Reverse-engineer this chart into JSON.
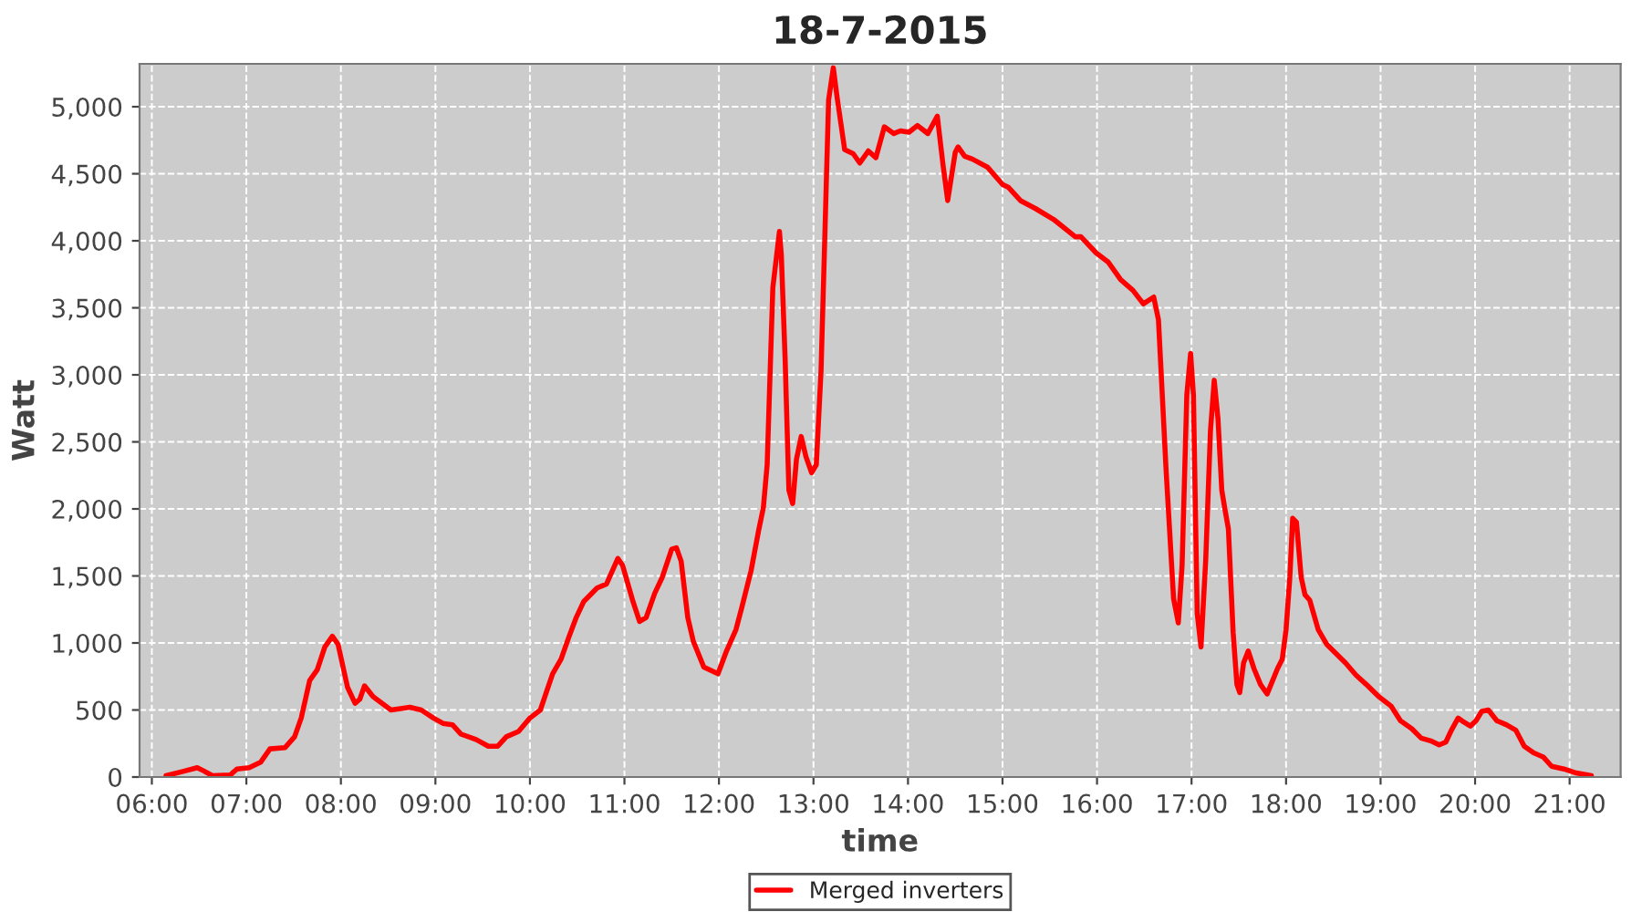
{
  "chart_data": {
    "type": "line",
    "title": "18-7-2015",
    "xlabel": "time",
    "ylabel": "Watt",
    "xlim": [
      5.87,
      21.54
    ],
    "ylim": [
      0,
      5320
    ],
    "xticks": [
      {
        "value": 6,
        "label": "06:00"
      },
      {
        "value": 7,
        "label": "07:00"
      },
      {
        "value": 8,
        "label": "08:00"
      },
      {
        "value": 9,
        "label": "09:00"
      },
      {
        "value": 10,
        "label": "10:00"
      },
      {
        "value": 11,
        "label": "11:00"
      },
      {
        "value": 12,
        "label": "12:00"
      },
      {
        "value": 13,
        "label": "13:00"
      },
      {
        "value": 14,
        "label": "14:00"
      },
      {
        "value": 15,
        "label": "15:00"
      },
      {
        "value": 16,
        "label": "16:00"
      },
      {
        "value": 17,
        "label": "17:00"
      },
      {
        "value": 18,
        "label": "18:00"
      },
      {
        "value": 19,
        "label": "19:00"
      },
      {
        "value": 20,
        "label": "20:00"
      },
      {
        "value": 21,
        "label": "21:00"
      }
    ],
    "yticks": [
      0,
      500,
      {
        "value": 1000,
        "label": "1,000"
      },
      {
        "value": 1500,
        "label": "1,500"
      },
      {
        "value": 2000,
        "label": "2,000"
      },
      {
        "value": 2500,
        "label": "2,500"
      },
      {
        "value": 3000,
        "label": "3,000"
      },
      {
        "value": 3500,
        "label": "3,500"
      },
      {
        "value": 4000,
        "label": "4,000"
      },
      {
        "value": 4500,
        "label": "4,500"
      },
      {
        "value": 5000,
        "label": "5,000"
      }
    ],
    "grid": true,
    "legend": "bottom",
    "line_style": "solid",
    "series": [
      {
        "name": "Merged inverters",
        "color": "#ff0000",
        "x": [
          6.15,
          6.32,
          6.48,
          6.55,
          6.64,
          6.83,
          6.9,
          7.03,
          7.15,
          7.25,
          7.41,
          7.51,
          7.58,
          7.67,
          7.75,
          7.83,
          7.91,
          7.97,
          8.07,
          8.15,
          8.2,
          8.25,
          8.34,
          8.53,
          8.73,
          8.85,
          8.98,
          9.08,
          9.18,
          9.27,
          9.43,
          9.56,
          9.66,
          9.75,
          9.88,
          10.0,
          10.11,
          10.24,
          10.33,
          10.41,
          10.49,
          10.57,
          10.71,
          10.81,
          10.93,
          10.98,
          11.09,
          11.16,
          11.23,
          11.32,
          11.4,
          11.5,
          11.55,
          11.6,
          11.67,
          11.73,
          11.84,
          11.99,
          12.08,
          12.18,
          12.24,
          12.34,
          12.42,
          12.47,
          12.51,
          12.57,
          12.64,
          12.66,
          12.7,
          12.74,
          12.78,
          12.82,
          12.87,
          12.92,
          12.98,
          13.03,
          13.08,
          13.12,
          13.16,
          13.21,
          13.25,
          13.33,
          13.42,
          13.49,
          13.58,
          13.66,
          13.75,
          13.85,
          13.92,
          14.01,
          14.1,
          14.21,
          14.31,
          14.37,
          14.42,
          14.5,
          14.53,
          14.6,
          14.68,
          14.84,
          15.0,
          15.06,
          15.19,
          15.35,
          15.54,
          15.77,
          15.83,
          15.99,
          16.12,
          16.25,
          16.38,
          16.49,
          16.6,
          16.65,
          16.73,
          16.81,
          16.86,
          16.9,
          16.95,
          16.99,
          17.02,
          17.06,
          17.1,
          17.15,
          17.2,
          17.24,
          17.28,
          17.32,
          17.35,
          17.39,
          17.44,
          17.48,
          17.51,
          17.55,
          17.6,
          17.66,
          17.73,
          17.8,
          17.91,
          17.96,
          18.0,
          18.04,
          18.07,
          18.11,
          18.16,
          18.2,
          18.25,
          18.34,
          18.43,
          18.53,
          18.63,
          18.74,
          18.85,
          18.98,
          19.11,
          19.21,
          19.33,
          19.43,
          19.53,
          19.62,
          19.69,
          19.75,
          19.82,
          19.88,
          19.95,
          20.01,
          20.07,
          20.14,
          20.23,
          20.33,
          20.43,
          20.52,
          20.62,
          20.72,
          20.81,
          20.94,
          21.07,
          21.23
        ],
        "values": [
          10,
          40,
          70,
          45,
          10,
          15,
          60,
          70,
          110,
          210,
          220,
          300,
          440,
          720,
          800,
          970,
          1050,
          990,
          670,
          550,
          580,
          680,
          600,
          500,
          520,
          500,
          440,
          400,
          390,
          320,
          280,
          230,
          230,
          300,
          340,
          440,
          500,
          770,
          880,
          1040,
          1190,
          1310,
          1410,
          1440,
          1630,
          1580,
          1310,
          1160,
          1190,
          1370,
          1490,
          1700,
          1710,
          1610,
          1190,
          1010,
          820,
          770,
          940,
          1100,
          1260,
          1540,
          1840,
          2010,
          2330,
          3650,
          4070,
          3890,
          3120,
          2140,
          2040,
          2370,
          2540,
          2390,
          2270,
          2330,
          3030,
          4030,
          5050,
          5290,
          5070,
          4680,
          4650,
          4580,
          4670,
          4620,
          4850,
          4800,
          4820,
          4810,
          4860,
          4800,
          4930,
          4570,
          4300,
          4660,
          4700,
          4630,
          4610,
          4550,
          4420,
          4400,
          4300,
          4240,
          4160,
          4030,
          4030,
          3910,
          3840,
          3710,
          3630,
          3530,
          3580,
          3410,
          2300,
          1330,
          1150,
          1580,
          2850,
          3160,
          2850,
          1220,
          970,
          1620,
          2580,
          2960,
          2670,
          2140,
          2010,
          1850,
          1080,
          690,
          630,
          850,
          940,
          810,
          690,
          620,
          810,
          880,
          1100,
          1490,
          1930,
          1900,
          1490,
          1360,
          1320,
          1100,
          990,
          920,
          850,
          760,
          690,
          600,
          530,
          420,
          360,
          290,
          270,
          240,
          260,
          350,
          440,
          410,
          380,
          420,
          490,
          500,
          420,
          390,
          350,
          230,
          180,
          150,
          80,
          60,
          30,
          10
        ]
      }
    ]
  }
}
